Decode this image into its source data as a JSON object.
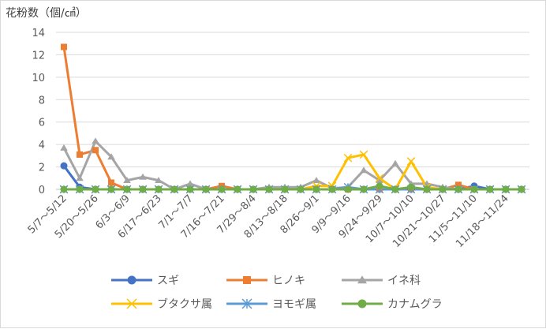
{
  "chart_data": {
    "type": "line",
    "title": "",
    "ylabel": "花粉数（個/㎠）",
    "xlabel": "",
    "ylim": [
      0,
      14
    ],
    "y_ticks": [
      "0",
      "2",
      "4",
      "6",
      "8",
      "10",
      "12",
      "14"
    ],
    "grid": "horizontal",
    "legend_position": "bottom",
    "categories": [
      "5/7〜5/12",
      "",
      "5/20〜5/26",
      "",
      "6/3〜6/9",
      "",
      "6/17〜6/23",
      "",
      "7/1〜7/7",
      "",
      "7/16〜7/21",
      "",
      "7/29〜8/4",
      "",
      "8/13〜8/18",
      "",
      "8/26〜9/1",
      "",
      "9/9〜9/16",
      "",
      "9/24〜9/29",
      "",
      "10/7〜10/10",
      "",
      "10/21〜10/27",
      "",
      "11/5〜11/10",
      "",
      "11/18〜11/24",
      ""
    ],
    "series": [
      {
        "name": "スギ",
        "color": "#4472c4",
        "marker": "circle",
        "values": [
          2.1,
          0.2,
          0,
          0,
          0,
          0,
          0,
          0,
          0,
          0,
          0,
          0,
          0,
          0,
          0,
          0,
          0,
          0,
          0,
          0,
          0,
          0,
          0,
          0,
          0,
          0,
          0.3,
          0,
          0,
          0
        ]
      },
      {
        "name": "ヒノキ",
        "color": "#ed7d31",
        "marker": "square",
        "values": [
          12.7,
          3.1,
          3.5,
          0.6,
          0,
          0,
          0,
          0,
          0,
          0,
          0.3,
          0,
          0,
          0,
          0,
          0,
          0,
          0,
          0,
          0,
          0,
          0,
          0,
          0,
          0,
          0.4,
          0,
          0,
          0,
          0
        ]
      },
      {
        "name": "イネ科",
        "color": "#a5a5a5",
        "marker": "triangle",
        "values": [
          3.7,
          1.0,
          4.3,
          2.9,
          0.8,
          1.1,
          0.8,
          0,
          0.5,
          0,
          0,
          0,
          0,
          0.2,
          0.2,
          0.2,
          0.8,
          0.1,
          0.2,
          1.7,
          0.8,
          2.3,
          0.5,
          0.5,
          0.2,
          0,
          0,
          0,
          0,
          0
        ]
      },
      {
        "name": "ブタクサ属",
        "color": "#ffc000",
        "marker": "x",
        "values": [
          0,
          0,
          0,
          0,
          0,
          0,
          0,
          0,
          0,
          0,
          0,
          0,
          0,
          0,
          0,
          0,
          0.3,
          0.3,
          2.8,
          3.1,
          1.0,
          0,
          2.5,
          0.2,
          0,
          0,
          0,
          0,
          0,
          0
        ]
      },
      {
        "name": "ヨモギ属",
        "color": "#5b9bd5",
        "marker": "star",
        "values": [
          0,
          0,
          0,
          0,
          0,
          0,
          0,
          0,
          0,
          0,
          0,
          0,
          0,
          0,
          0,
          0,
          0,
          0,
          0.2,
          0,
          0,
          0,
          0,
          0,
          0,
          0,
          0,
          0,
          0,
          0
        ]
      },
      {
        "name": "カナムグラ",
        "color": "#70ad47",
        "marker": "circle",
        "values": [
          0,
          0,
          0,
          0,
          0,
          0,
          0,
          0,
          0,
          0,
          0,
          0,
          0,
          0,
          0,
          0,
          0,
          0,
          0,
          0,
          0.3,
          0,
          0.2,
          0,
          0,
          0,
          0,
          0,
          0,
          0
        ]
      }
    ]
  }
}
